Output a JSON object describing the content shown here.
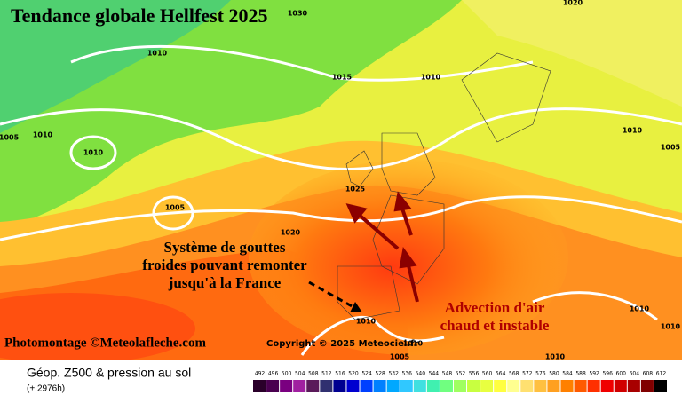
{
  "map": {
    "title": "Tendance globale Hellfest 2025",
    "annotation_cold": [
      "Système de gouttes",
      "froides pouvant remonter",
      "jusqu'à la France"
    ],
    "annotation_warm": [
      "Advection d'air",
      "chaud et instable"
    ],
    "credit_left": "Photomontage ©Meteolafleche.com",
    "credit_right": "Copyright © 2025 Meteociel.fr",
    "isobar_labels": [
      1030,
      1020,
      1010,
      1015,
      1010,
      1005,
      1010,
      1010,
      1010,
      1005,
      1005,
      1025,
      1020,
      1010,
      1005,
      1010,
      1010,
      1010,
      1010
    ],
    "footer_title": "Géop. Z500 & pression au sol",
    "footer_run": "(+ 2976h)",
    "legend": {
      "values": [
        492,
        496,
        500,
        504,
        508,
        512,
        516,
        520,
        524,
        528,
        532,
        536,
        540,
        544,
        548,
        552,
        556,
        560,
        564,
        568,
        572,
        576,
        580,
        584,
        588,
        592,
        596,
        600,
        604,
        608,
        612
      ],
      "colors": [
        "#2a002a",
        "#4a0050",
        "#7a0080",
        "#a020a0",
        "#5a1a5a",
        "#303070",
        "#000090",
        "#0000d0",
        "#0040ff",
        "#0080ff",
        "#00a8ff",
        "#30c8ff",
        "#40e0e0",
        "#40f0b0",
        "#70ff80",
        "#a0ff60",
        "#c8ff40",
        "#e8ff40",
        "#ffff40",
        "#ffff90",
        "#ffe070",
        "#ffc040",
        "#ffa020",
        "#ff8000",
        "#ff5a00",
        "#ff3000",
        "#f00000",
        "#d00000",
        "#a80000",
        "#800000",
        "#000000"
      ]
    }
  }
}
